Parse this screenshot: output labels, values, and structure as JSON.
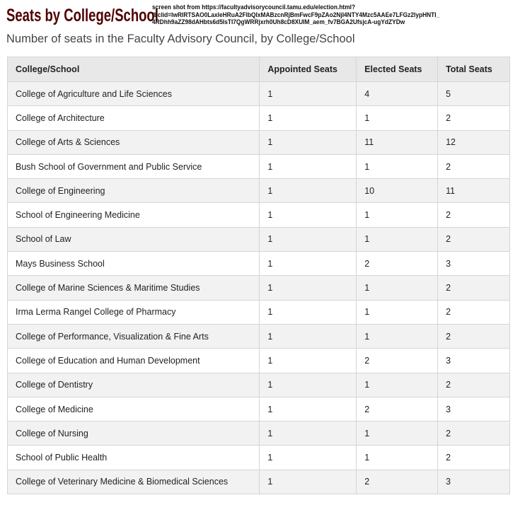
{
  "title": "Seats by College/School",
  "note": [
    "screen shot from https://facultyadvisorycouncil.tamu.edu/election.html?",
    "fbclid=IwRIRTSAO0LaxleHRuA2FIbQIxMABzcnRjBmFwcF9pZAo2NjI4NTY4Mzc5AAEe7LFGz2lypHNTI_",
    "4RDhh9aZZ98dAHbts6d5IsTI7QgWRRjxrh0Uh8cD8XUIM_aem_fv7BGA2UfsjcA-ugYdZYDw"
  ],
  "subtitle": "Number of seats in the Faculty Advisory Council, by College/School",
  "columns": [
    "College/School",
    "Appointed Seats",
    "Elected Seats",
    "Total Seats"
  ],
  "rows": [
    [
      "College of Agriculture and Life Sciences",
      "1",
      "4",
      "5"
    ],
    [
      "College of Architecture",
      "1",
      "1",
      "2"
    ],
    [
      "College of Arts & Sciences",
      "1",
      "11",
      "12"
    ],
    [
      "Bush School of Government and Public Service",
      "1",
      "1",
      "2"
    ],
    [
      "College of Engineering",
      "1",
      "10",
      "11"
    ],
    [
      "School of Engineering Medicine",
      "1",
      "1",
      "2"
    ],
    [
      "School of Law",
      "1",
      "1",
      "2"
    ],
    [
      "Mays Business School",
      "1",
      "2",
      "3"
    ],
    [
      "College of Marine Sciences & Maritime Studies",
      "1",
      "1",
      "2"
    ],
    [
      "Irma Lerma Rangel College of Pharmacy",
      "1",
      "1",
      "2"
    ],
    [
      "College of Performance, Visualization & Fine Arts",
      "1",
      "1",
      "2"
    ],
    [
      "College of Education and Human Development",
      "1",
      "2",
      "3"
    ],
    [
      "College of Dentistry",
      "1",
      "1",
      "2"
    ],
    [
      "College of Medicine",
      "1",
      "2",
      "3"
    ],
    [
      "College of Nursing",
      "1",
      "1",
      "2"
    ],
    [
      "School of Public Health",
      "1",
      "1",
      "2"
    ],
    [
      "College of Veterinary Medicine & Biomedical Sciences",
      "1",
      "2",
      "3"
    ]
  ]
}
